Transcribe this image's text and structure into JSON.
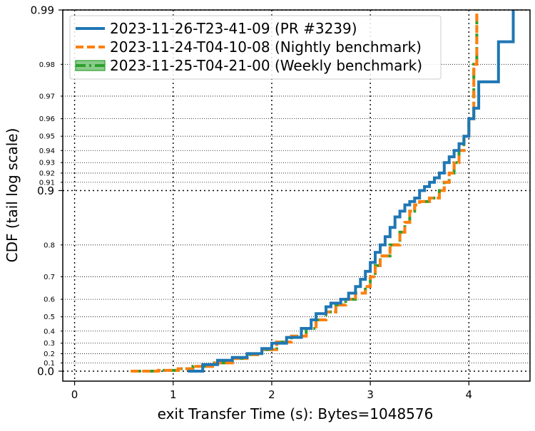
{
  "chart_data": {
    "type": "line",
    "subtype": "empirical CDF (step), tail log scale",
    "xlabel": "exit Transfer Time (s): Bytes=1048576",
    "ylabel": "CDF (tail log scale)",
    "xlim": [
      -0.12,
      4.62
    ],
    "ylim": [
      0.0,
      0.99
    ],
    "x_ticks": [
      "0",
      "1",
      "2",
      "3",
      "4"
    ],
    "y_major_ticks": [
      "0.0",
      "0.9",
      "0.99"
    ],
    "y_minor_ticks": [
      "0.1",
      "0.2",
      "0.3",
      "0.4",
      "0.5",
      "0.6",
      "0.7",
      "0.8",
      "0.91",
      "0.92",
      "0.93",
      "0.94",
      "0.95",
      "0.96",
      "0.97",
      "0.98"
    ],
    "y_scale": "tail log: -log10(1 - CDF)",
    "grid": true,
    "legend_position": "top-left",
    "series": [
      {
        "name": "2023-11-26-T23-41-09 (PR #3239)",
        "color": "#1f77b4",
        "style": "solid",
        "x": [
          1.15,
          1.3,
          1.45,
          1.6,
          1.75,
          1.9,
          2.0,
          2.15,
          2.3,
          2.4,
          2.45,
          2.55,
          2.6,
          2.7,
          2.78,
          2.85,
          2.9,
          2.95,
          3.0,
          3.05,
          3.1,
          3.15,
          3.2,
          3.25,
          3.3,
          3.35,
          3.4,
          3.45,
          3.5,
          3.55,
          3.6,
          3.65,
          3.7,
          3.75,
          3.8,
          3.85,
          3.9,
          3.95,
          4.0,
          4.05,
          4.1,
          4.3,
          4.45
        ],
        "y": [
          0.0,
          0.08,
          0.13,
          0.16,
          0.2,
          0.25,
          0.3,
          0.35,
          0.42,
          0.48,
          0.52,
          0.56,
          0.58,
          0.6,
          0.63,
          0.66,
          0.69,
          0.72,
          0.75,
          0.78,
          0.8,
          0.82,
          0.84,
          0.86,
          0.87,
          0.88,
          0.885,
          0.89,
          0.9,
          0.905,
          0.91,
          0.915,
          0.92,
          0.93,
          0.935,
          0.94,
          0.945,
          0.95,
          0.96,
          0.965,
          0.975,
          0.985,
          0.99
        ]
      },
      {
        "name": "2023-11-24-T04-10-08 (Nightly benchmark)",
        "color": "#ff7f0e",
        "style": "dashed",
        "x": [
          0.57,
          0.85,
          1.05,
          1.2,
          1.4,
          1.6,
          1.75,
          1.9,
          2.05,
          2.2,
          2.35,
          2.45,
          2.55,
          2.65,
          2.75,
          2.85,
          2.95,
          3.0,
          3.05,
          3.1,
          3.2,
          3.3,
          3.35,
          3.4,
          3.45,
          3.5,
          3.6,
          3.7,
          3.75,
          3.8,
          3.85,
          3.9,
          3.95,
          4.0,
          4.05,
          4.08
        ],
        "y": [
          0.0,
          0.01,
          0.03,
          0.06,
          0.1,
          0.15,
          0.19,
          0.24,
          0.31,
          0.36,
          0.42,
          0.48,
          0.53,
          0.57,
          0.6,
          0.63,
          0.66,
          0.7,
          0.74,
          0.77,
          0.8,
          0.83,
          0.85,
          0.87,
          0.88,
          0.885,
          0.89,
          0.9,
          0.91,
          0.92,
          0.93,
          0.94,
          0.95,
          0.96,
          0.98,
          0.99
        ]
      },
      {
        "name": "2023-11-25-T04-21-00 (Weekly benchmark)",
        "color": "#2ca02c",
        "style": "dash-dot",
        "x": [
          0.57,
          0.85,
          1.05,
          1.2,
          1.4,
          1.6,
          1.75,
          1.9,
          2.05,
          2.2,
          2.35,
          2.45,
          2.55,
          2.65,
          2.75,
          2.85,
          2.95,
          3.0,
          3.05,
          3.1,
          3.2,
          3.3,
          3.35,
          3.4,
          3.45,
          3.5,
          3.6,
          3.7,
          3.75,
          3.8,
          3.85,
          3.9,
          3.95,
          4.0,
          4.05,
          4.08
        ],
        "y": [
          0.0,
          0.01,
          0.03,
          0.06,
          0.1,
          0.15,
          0.19,
          0.24,
          0.31,
          0.36,
          0.42,
          0.48,
          0.53,
          0.57,
          0.6,
          0.63,
          0.66,
          0.7,
          0.74,
          0.77,
          0.8,
          0.83,
          0.85,
          0.87,
          0.88,
          0.885,
          0.89,
          0.9,
          0.91,
          0.92,
          0.93,
          0.94,
          0.95,
          0.96,
          0.98,
          0.99
        ]
      }
    ]
  }
}
